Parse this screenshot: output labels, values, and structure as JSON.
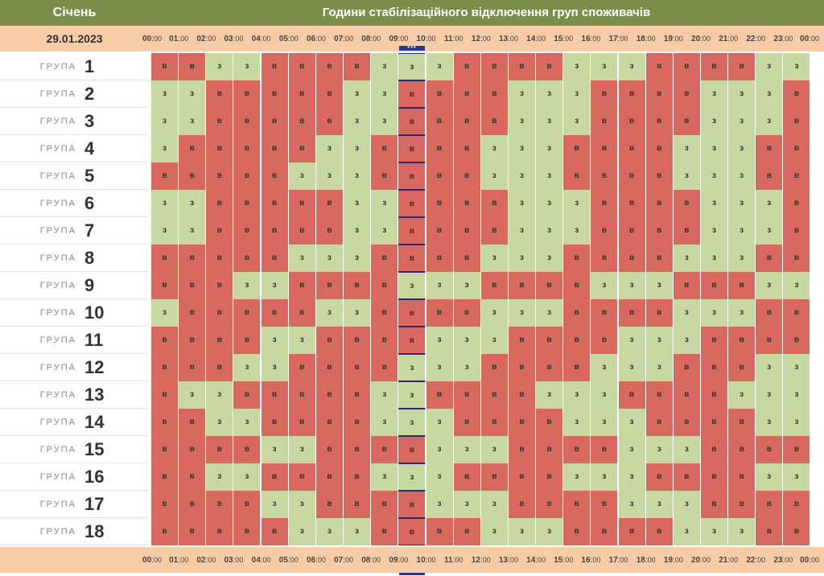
{
  "header": {
    "month": "Січень",
    "title": "Години стабілізаційного відключення груп споживачів",
    "date": "29.01.2023"
  },
  "time_ticks": [
    {
      "h": "00",
      "m": "00"
    },
    {
      "h": "01",
      "m": "00"
    },
    {
      "h": "02",
      "m": "00"
    },
    {
      "h": "03",
      "m": "00"
    },
    {
      "h": "04",
      "m": "00"
    },
    {
      "h": "05",
      "m": "00"
    },
    {
      "h": "06",
      "m": "00"
    },
    {
      "h": "07",
      "m": "00"
    },
    {
      "h": "08",
      "m": "00"
    },
    {
      "h": "09",
      "m": "00"
    },
    {
      "h": "10",
      "m": "00"
    },
    {
      "h": "11",
      "m": "00"
    },
    {
      "h": "12",
      "m": "00"
    },
    {
      "h": "13",
      "m": "00"
    },
    {
      "h": "14",
      "m": "00"
    },
    {
      "h": "15",
      "m": "00"
    },
    {
      "h": "16",
      "m": "00"
    },
    {
      "h": "17",
      "m": "00"
    },
    {
      "h": "18",
      "m": "00"
    },
    {
      "h": "19",
      "m": "00"
    },
    {
      "h": "20",
      "m": "00"
    },
    {
      "h": "21",
      "m": "00"
    },
    {
      "h": "22",
      "m": "00"
    },
    {
      "h": "23",
      "m": "00"
    },
    {
      "h": "00",
      "m": "00"
    }
  ],
  "current_hour_index": 9,
  "current_marker": "•••",
  "group_word": "ГРУПА",
  "status_colors": {
    "в": "#d9685e",
    "з": "#c7d9a0"
  },
  "groups": [
    {
      "num": "1",
      "hours": [
        "в",
        "в",
        "з",
        "з",
        "в",
        "в",
        "в",
        "в",
        "з",
        "з",
        "з",
        "в",
        "в",
        "в",
        "в",
        "з",
        "з",
        "з",
        "в",
        "в",
        "в",
        "в",
        "з",
        "з"
      ]
    },
    {
      "num": "2",
      "hours": [
        "з",
        "з",
        "в",
        "в",
        "в",
        "в",
        "в",
        "з",
        "з",
        "в",
        "в",
        "в",
        "в",
        "з",
        "з",
        "з",
        "в",
        "в",
        "в",
        "в",
        "з",
        "з",
        "з",
        "в"
      ]
    },
    {
      "num": "3",
      "hours": [
        "з",
        "з",
        "в",
        "в",
        "в",
        "в",
        "в",
        "з",
        "з",
        "в",
        "в",
        "в",
        "в",
        "з",
        "з",
        "з",
        "в",
        "в",
        "в",
        "в",
        "з",
        "з",
        "з",
        "в"
      ]
    },
    {
      "num": "4",
      "hours": [
        "з",
        "в",
        "в",
        "в",
        "в",
        "в",
        "з",
        "з",
        "в",
        "в",
        "в",
        "в",
        "з",
        "з",
        "з",
        "в",
        "в",
        "в",
        "в",
        "з",
        "з",
        "з",
        "в",
        "в"
      ]
    },
    {
      "num": "5",
      "hours": [
        "в",
        "в",
        "в",
        "в",
        "в",
        "з",
        "з",
        "з",
        "в",
        "в",
        "в",
        "в",
        "з",
        "з",
        "з",
        "в",
        "в",
        "в",
        "в",
        "з",
        "з",
        "з",
        "в",
        "в"
      ]
    },
    {
      "num": "6",
      "hours": [
        "з",
        "з",
        "в",
        "в",
        "в",
        "в",
        "в",
        "з",
        "з",
        "в",
        "в",
        "в",
        "в",
        "з",
        "з",
        "з",
        "в",
        "в",
        "в",
        "в",
        "з",
        "з",
        "з",
        "в"
      ]
    },
    {
      "num": "7",
      "hours": [
        "з",
        "з",
        "в",
        "в",
        "в",
        "в",
        "в",
        "з",
        "з",
        "в",
        "в",
        "в",
        "в",
        "з",
        "з",
        "з",
        "в",
        "в",
        "в",
        "в",
        "з",
        "з",
        "з",
        "в"
      ]
    },
    {
      "num": "8",
      "hours": [
        "в",
        "в",
        "в",
        "в",
        "в",
        "з",
        "з",
        "з",
        "в",
        "в",
        "в",
        "в",
        "з",
        "з",
        "з",
        "в",
        "в",
        "в",
        "в",
        "з",
        "з",
        "з",
        "в",
        "в"
      ]
    },
    {
      "num": "9",
      "hours": [
        "в",
        "в",
        "в",
        "з",
        "з",
        "в",
        "в",
        "в",
        "в",
        "з",
        "з",
        "з",
        "в",
        "в",
        "в",
        "в",
        "з",
        "з",
        "з",
        "в",
        "в",
        "в",
        "з",
        "з"
      ]
    },
    {
      "num": "10",
      "hours": [
        "з",
        "в",
        "в",
        "в",
        "в",
        "в",
        "з",
        "з",
        "в",
        "в",
        "в",
        "в",
        "з",
        "з",
        "з",
        "в",
        "в",
        "в",
        "в",
        "з",
        "з",
        "з",
        "в",
        "в"
      ]
    },
    {
      "num": "11",
      "hours": [
        "в",
        "в",
        "в",
        "в",
        "з",
        "з",
        "в",
        "в",
        "в",
        "в",
        "з",
        "з",
        "з",
        "в",
        "в",
        "в",
        "в",
        "з",
        "з",
        "з",
        "в",
        "в",
        "в",
        "в"
      ]
    },
    {
      "num": "12",
      "hours": [
        "в",
        "в",
        "в",
        "з",
        "з",
        "в",
        "в",
        "в",
        "в",
        "з",
        "з",
        "з",
        "в",
        "в",
        "в",
        "в",
        "з",
        "з",
        "з",
        "в",
        "в",
        "в",
        "з",
        "з"
      ]
    },
    {
      "num": "13",
      "hours": [
        "в",
        "з",
        "з",
        "в",
        "в",
        "в",
        "в",
        "в",
        "з",
        "з",
        "в",
        "в",
        "в",
        "в",
        "з",
        "з",
        "з",
        "в",
        "в",
        "в",
        "в",
        "з",
        "з",
        "з"
      ]
    },
    {
      "num": "14",
      "hours": [
        "в",
        "в",
        "з",
        "з",
        "в",
        "в",
        "в",
        "в",
        "з",
        "з",
        "з",
        "в",
        "в",
        "в",
        "в",
        "з",
        "з",
        "з",
        "в",
        "в",
        "в",
        "в",
        "з",
        "з"
      ]
    },
    {
      "num": "15",
      "hours": [
        "в",
        "в",
        "в",
        "в",
        "з",
        "з",
        "в",
        "в",
        "в",
        "в",
        "з",
        "з",
        "з",
        "в",
        "в",
        "в",
        "в",
        "з",
        "з",
        "з",
        "в",
        "в",
        "в",
        "в"
      ]
    },
    {
      "num": "16",
      "hours": [
        "в",
        "в",
        "з",
        "з",
        "в",
        "в",
        "в",
        "в",
        "з",
        "з",
        "з",
        "в",
        "в",
        "в",
        "в",
        "з",
        "з",
        "з",
        "в",
        "в",
        "в",
        "в",
        "з",
        "з"
      ]
    },
    {
      "num": "17",
      "hours": [
        "в",
        "в",
        "в",
        "в",
        "з",
        "з",
        "в",
        "в",
        "в",
        "в",
        "з",
        "з",
        "з",
        "в",
        "в",
        "в",
        "в",
        "з",
        "з",
        "з",
        "в",
        "в",
        "в",
        "в"
      ]
    },
    {
      "num": "18",
      "hours": [
        "в",
        "в",
        "в",
        "в",
        "в",
        "з",
        "з",
        "з",
        "в",
        "в",
        "в",
        "в",
        "з",
        "з",
        "з",
        "в",
        "в",
        "в",
        "в",
        "з",
        "з",
        "з",
        "в",
        "в"
      ]
    }
  ]
}
